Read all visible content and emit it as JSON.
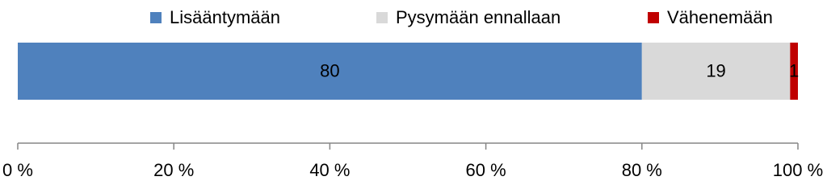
{
  "chart_data": {
    "type": "stacked-bar-horizontal",
    "series": [
      {
        "name": "Lisääntymään",
        "color": "#4f81bd",
        "values": [
          80
        ]
      },
      {
        "name": "Pysymään ennallaan",
        "color": "#d9d9d9",
        "values": [
          19
        ]
      },
      {
        "name": "Vähenemään",
        "color": "#c00000",
        "values": [
          1
        ]
      }
    ],
    "xlim": [
      0,
      100
    ],
    "xticks": [
      {
        "value": 0,
        "label": "0 %"
      },
      {
        "value": 20,
        "label": "20 %"
      },
      {
        "value": 40,
        "label": "40 %"
      },
      {
        "value": 60,
        "label": "60 %"
      },
      {
        "value": 80,
        "label": "80 %"
      },
      {
        "value": 100,
        "label": "100 %"
      }
    ],
    "legend": "top"
  }
}
